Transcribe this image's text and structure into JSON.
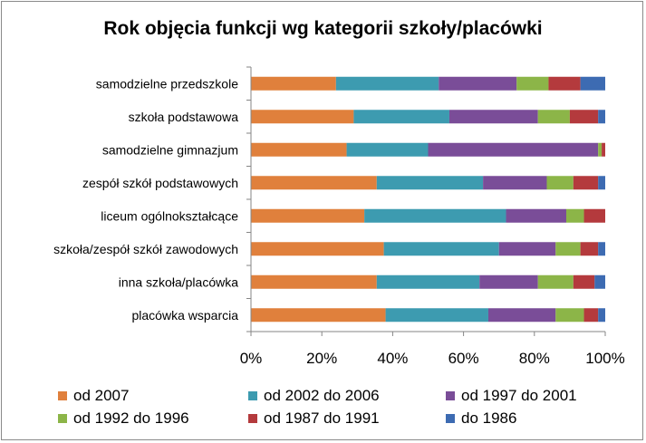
{
  "chart_data": {
    "type": "bar",
    "orientation": "horizontal",
    "stacked": "percent",
    "title": "Rok objęcia funkcji wg kategorii szkoły/placówki",
    "categories": [
      "samodzielne przedszkole",
      "szkoła podstawowa",
      "samodzielne gimnazjum",
      "zespół szkół podstawowych",
      "liceum ogólnokształcące",
      "szkoła/zespół szkół zawodowych",
      "inna szkoła/placówka",
      "placówka wsparcia"
    ],
    "series": [
      {
        "name": "od 2007",
        "color": "#E0803C",
        "values": [
          24,
          29,
          27,
          35.5,
          32,
          37.5,
          35.5,
          38
        ]
      },
      {
        "name": "od 2002 do 2006",
        "color": "#3D9BB0",
        "values": [
          29,
          27,
          23,
          30,
          40,
          32.5,
          29,
          29
        ]
      },
      {
        "name": "od 1997 do 2001",
        "color": "#7A4D98",
        "values": [
          22,
          25,
          48,
          18,
          17,
          16,
          16.5,
          19
        ]
      },
      {
        "name": "od 1992 do 1996",
        "color": "#8CB548",
        "values": [
          9,
          9,
          1,
          7.5,
          5,
          7,
          10,
          8
        ]
      },
      {
        "name": "od 1987 do 1991",
        "color": "#B43A3D",
        "values": [
          9,
          8,
          1,
          7,
          6,
          5,
          6,
          4
        ]
      },
      {
        "name": "do 1986",
        "color": "#3D6BB2",
        "values": [
          7,
          2,
          0,
          2,
          0,
          2,
          3,
          2
        ]
      }
    ],
    "x_ticks": [
      "0%",
      "20%",
      "40%",
      "60%",
      "80%",
      "100%"
    ],
    "xlim": [
      0,
      100
    ],
    "grid": false,
    "legend_position": "bottom"
  }
}
